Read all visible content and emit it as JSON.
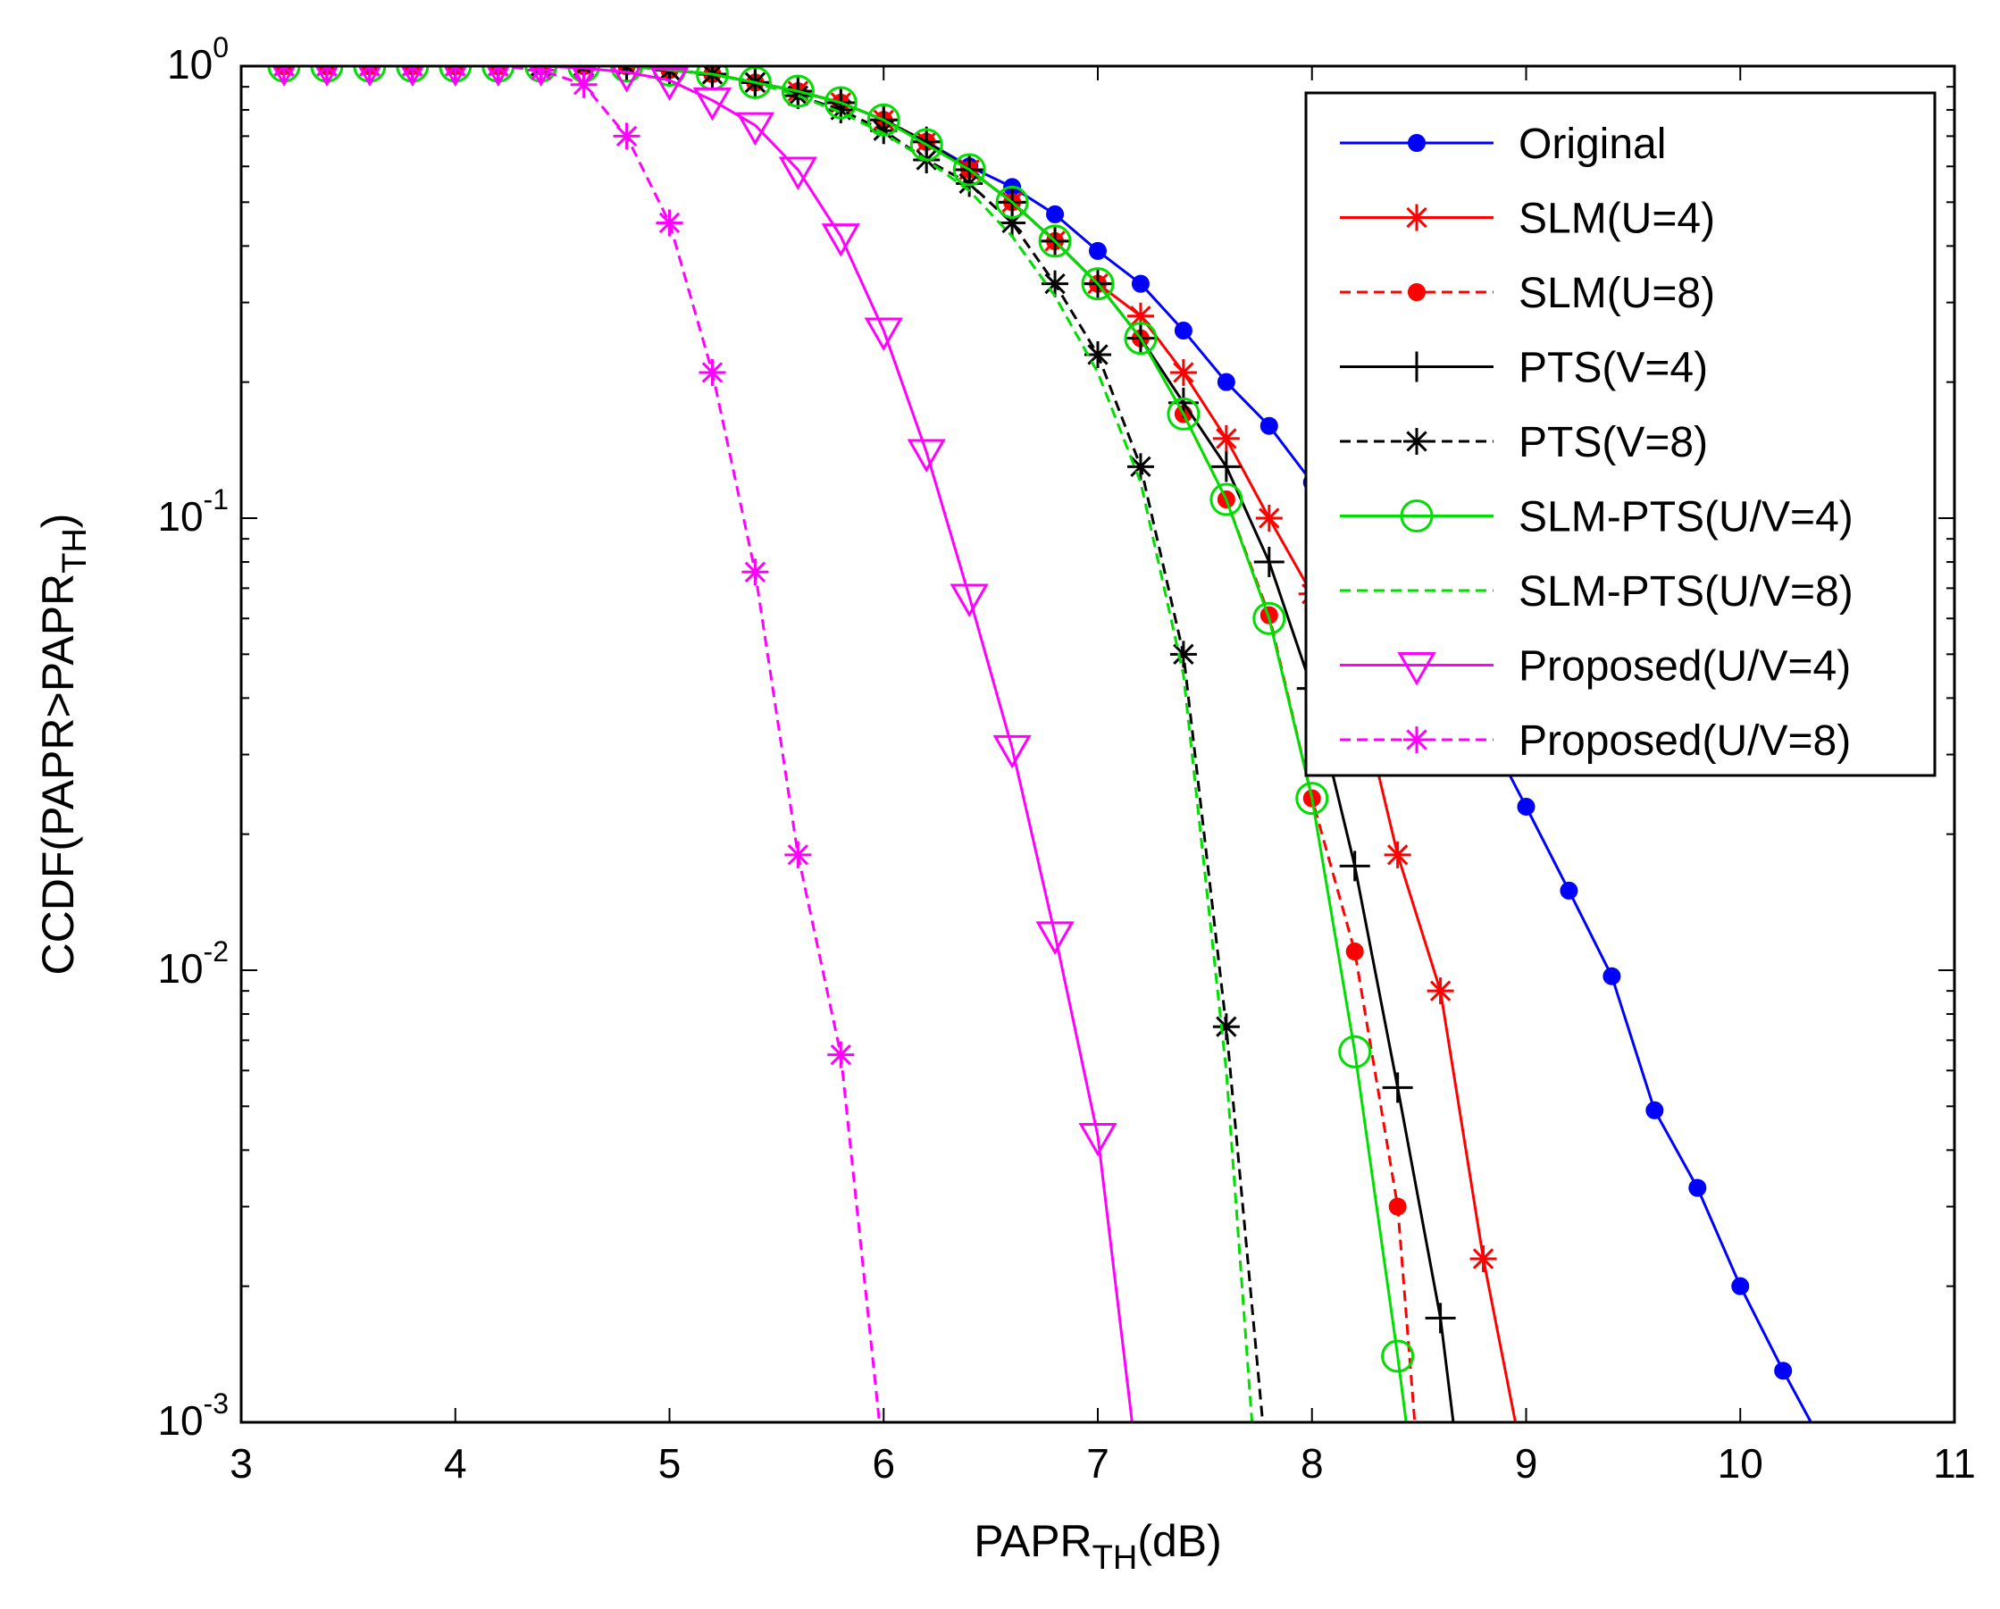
{
  "chart_data": {
    "type": "line",
    "title": "",
    "xlabel": {
      "main": "PAPR",
      "sub": "TH",
      "tail": "(dB)"
    },
    "ylabel": {
      "main": "CCDF(PAPR>PAPR",
      "sub": "TH",
      "tail": ")"
    },
    "xlim": [
      3,
      11
    ],
    "ylim": [
      0.001,
      1
    ],
    "yscale": "log",
    "grid": false,
    "legend_position": "top-right",
    "x_ticks": [
      "3",
      "4",
      "5",
      "6",
      "7",
      "8",
      "9",
      "10",
      "11"
    ],
    "y_ticks": [
      {
        "base": "10",
        "exp": "0"
      },
      {
        "base": "10",
        "exp": "-1"
      },
      {
        "base": "10",
        "exp": "-2"
      },
      {
        "base": "10",
        "exp": "-3"
      }
    ],
    "series": [
      {
        "name": "Original",
        "color": "#0000ff",
        "dash": false,
        "marker": "dot",
        "x": [
          3.0,
          3.2,
          3.4,
          3.6,
          3.8,
          4.0,
          4.2,
          4.4,
          4.6,
          4.8,
          5.0,
          5.2,
          5.4,
          5.6,
          5.8,
          6.0,
          6.2,
          6.4,
          6.6,
          6.8,
          7.0,
          7.2,
          7.4,
          7.6,
          7.8,
          8.0,
          8.2,
          8.4,
          8.6,
          8.8,
          9.0,
          9.2,
          9.4,
          9.6,
          9.8,
          10.0,
          10.2,
          10.33
        ],
        "y": [
          1,
          1,
          1,
          1,
          1,
          1,
          1,
          1,
          1,
          1,
          0.98,
          0.96,
          0.92,
          0.88,
          0.83,
          0.76,
          0.68,
          0.6,
          0.54,
          0.47,
          0.39,
          0.33,
          0.26,
          0.2,
          0.16,
          0.12,
          0.09,
          0.07,
          0.05,
          0.035,
          0.023,
          0.015,
          0.0097,
          0.0049,
          0.0033,
          0.002,
          0.0013,
          0.001
        ]
      },
      {
        "name": "SLM(U=4)",
        "color": "#ff0000",
        "dash": false,
        "marker": "asterisk",
        "x": [
          3.0,
          3.2,
          3.4,
          3.6,
          3.8,
          4.0,
          4.2,
          4.4,
          4.6,
          4.8,
          5.0,
          5.2,
          5.4,
          5.6,
          5.8,
          6.0,
          6.2,
          6.4,
          6.6,
          6.8,
          7.0,
          7.2,
          7.4,
          7.6,
          7.8,
          8.0,
          8.2,
          8.4,
          8.6,
          8.8,
          8.95
        ],
        "y": [
          1,
          1,
          1,
          1,
          1,
          1,
          1,
          1,
          1,
          1,
          0.98,
          0.96,
          0.92,
          0.88,
          0.83,
          0.76,
          0.68,
          0.59,
          0.5,
          0.41,
          0.33,
          0.28,
          0.21,
          0.15,
          0.1,
          0.068,
          0.045,
          0.018,
          0.009,
          0.0023,
          0.001
        ]
      },
      {
        "name": "SLM(U=8)",
        "color": "#ff0000",
        "dash": true,
        "marker": "dot",
        "x": [
          3.0,
          3.2,
          3.4,
          3.6,
          3.8,
          4.0,
          4.2,
          4.4,
          4.6,
          4.8,
          5.0,
          5.2,
          5.4,
          5.6,
          5.8,
          6.0,
          6.2,
          6.4,
          6.6,
          6.8,
          7.0,
          7.2,
          7.4,
          7.6,
          7.8,
          8.0,
          8.2,
          8.4,
          8.48
        ],
        "y": [
          1,
          1,
          1,
          1,
          1,
          1,
          1,
          1,
          1,
          1,
          0.98,
          0.96,
          0.92,
          0.88,
          0.83,
          0.76,
          0.68,
          0.59,
          0.5,
          0.41,
          0.33,
          0.25,
          0.17,
          0.11,
          0.061,
          0.024,
          0.011,
          0.003,
          0.001
        ]
      },
      {
        "name": "PTS(V=4)",
        "color": "#000000",
        "dash": false,
        "marker": "plus",
        "x": [
          3.0,
          3.2,
          3.4,
          3.6,
          3.8,
          4.0,
          4.2,
          4.4,
          4.6,
          4.8,
          5.0,
          5.2,
          5.4,
          5.6,
          5.8,
          6.0,
          6.2,
          6.4,
          6.6,
          6.8,
          7.0,
          7.2,
          7.4,
          7.6,
          7.8,
          8.0,
          8.2,
          8.4,
          8.6,
          8.66
        ],
        "y": [
          1,
          1,
          1,
          1,
          1,
          1,
          1,
          1,
          1,
          1,
          0.98,
          0.96,
          0.92,
          0.88,
          0.83,
          0.76,
          0.68,
          0.59,
          0.5,
          0.41,
          0.33,
          0.25,
          0.18,
          0.13,
          0.08,
          0.042,
          0.017,
          0.0055,
          0.0017,
          0.001
        ]
      },
      {
        "name": "PTS(V=8)",
        "color": "#000000",
        "dash": true,
        "marker": "asterisk",
        "x": [
          3.0,
          3.2,
          3.4,
          3.6,
          3.8,
          4.0,
          4.2,
          4.4,
          4.6,
          4.8,
          5.0,
          5.2,
          5.4,
          5.6,
          5.8,
          6.0,
          6.2,
          6.4,
          6.6,
          6.8,
          7.0,
          7.2,
          7.4,
          7.6,
          7.77
        ],
        "y": [
          1,
          1,
          1,
          1,
          1,
          1,
          1,
          1,
          1,
          1,
          0.98,
          0.96,
          0.92,
          0.86,
          0.8,
          0.72,
          0.62,
          0.55,
          0.45,
          0.33,
          0.23,
          0.13,
          0.05,
          0.0075,
          0.001
        ]
      },
      {
        "name": "SLM-PTS(U/V=4)",
        "color": "#00dd00",
        "dash": false,
        "marker": "circle",
        "x": [
          3.0,
          3.2,
          3.4,
          3.6,
          3.8,
          4.0,
          4.2,
          4.4,
          4.6,
          4.8,
          5.0,
          5.2,
          5.4,
          5.6,
          5.8,
          6.0,
          6.2,
          6.4,
          6.6,
          6.8,
          7.0,
          7.2,
          7.4,
          7.6,
          7.8,
          8.0,
          8.2,
          8.4,
          8.44
        ],
        "y": [
          1,
          1,
          1,
          1,
          1,
          1,
          1,
          1,
          1,
          1,
          0.98,
          0.96,
          0.92,
          0.88,
          0.83,
          0.76,
          0.67,
          0.59,
          0.5,
          0.41,
          0.33,
          0.25,
          0.17,
          0.11,
          0.06,
          0.024,
          0.0066,
          0.0014,
          0.001
        ]
      },
      {
        "name": "SLM-PTS(U/V=8)",
        "color": "#00dd00",
        "dash": true,
        "marker": "none",
        "x": [
          3.0,
          3.2,
          3.4,
          3.6,
          3.8,
          4.0,
          4.2,
          4.4,
          4.6,
          4.8,
          5.0,
          5.2,
          5.4,
          5.6,
          5.8,
          6.0,
          6.2,
          6.4,
          6.6,
          6.8,
          7.0,
          7.2,
          7.4,
          7.6,
          7.72
        ],
        "y": [
          1,
          1,
          1,
          1,
          1,
          1,
          1,
          1,
          1,
          1,
          0.98,
          0.96,
          0.92,
          0.86,
          0.79,
          0.71,
          0.62,
          0.53,
          0.42,
          0.31,
          0.21,
          0.12,
          0.045,
          0.006,
          0.001
        ]
      },
      {
        "name": "Proposed(U/V=4)",
        "color": "#ff00ff",
        "dash": false,
        "marker": "triangle-down",
        "x": [
          3.0,
          3.2,
          3.4,
          3.6,
          3.8,
          4.0,
          4.2,
          4.4,
          4.6,
          4.8,
          5.0,
          5.2,
          5.4,
          5.6,
          5.8,
          6.0,
          6.2,
          6.4,
          6.6,
          6.8,
          7.0,
          7.16
        ],
        "y": [
          1,
          1,
          1,
          1,
          1,
          1,
          1,
          1,
          0.99,
          0.97,
          0.93,
          0.84,
          0.74,
          0.59,
          0.42,
          0.26,
          0.14,
          0.067,
          0.031,
          0.012,
          0.0043,
          0.001
        ]
      },
      {
        "name": "Proposed(U/V=8)",
        "color": "#ff00ff",
        "dash": true,
        "marker": "asterisk",
        "x": [
          3.0,
          3.2,
          3.4,
          3.6,
          3.8,
          4.0,
          4.2,
          4.4,
          4.6,
          4.8,
          5.0,
          5.2,
          5.4,
          5.6,
          5.8,
          5.98
        ],
        "y": [
          1,
          1,
          1,
          1,
          1,
          1,
          1,
          0.98,
          0.91,
          0.7,
          0.45,
          0.21,
          0.076,
          0.018,
          0.0065,
          0.001
        ]
      }
    ]
  }
}
